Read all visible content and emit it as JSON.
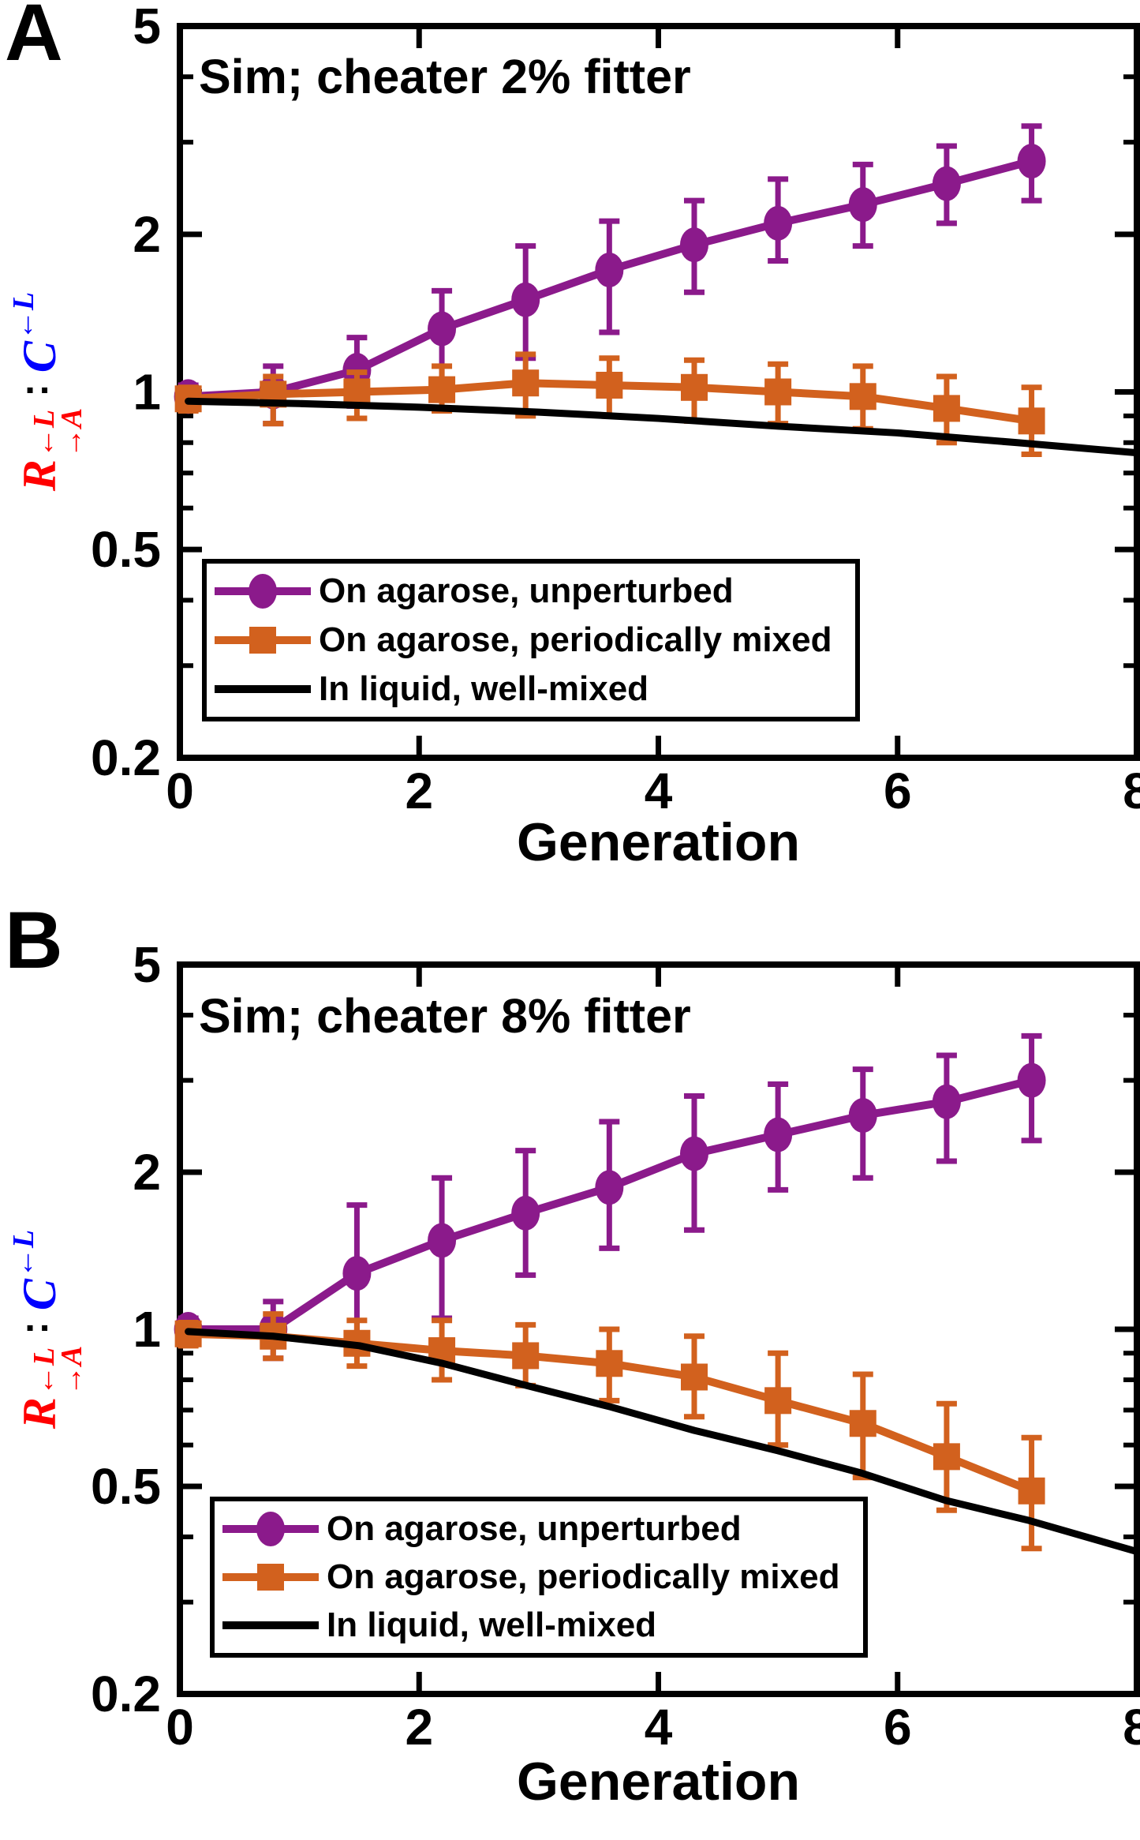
{
  "colors": {
    "purple": "#8B1A8B",
    "orange": "#D2611E",
    "black": "#000000",
    "red": "#FF0000",
    "blue": "#0000FF"
  },
  "panels": [
    {
      "letter": "A",
      "title": "Sim; cheater 2% fitter"
    },
    {
      "letter": "B",
      "title": "Sim; cheater 8% fitter"
    }
  ],
  "xlabel": "Generation",
  "ylabel": {
    "r": "R",
    "r_sup": "←L",
    "r_sub": "→A",
    "colon": ":",
    "c": "C",
    "c_sup": "←L"
  },
  "legend": [
    {
      "label": "On agarose, unperturbed",
      "marker": "ellipse",
      "color": "#8B1A8B"
    },
    {
      "label": "On agarose, periodically mixed",
      "marker": "square",
      "color": "#D2611E"
    },
    {
      "label": "In liquid, well-mixed",
      "marker": "line",
      "color": "#000000"
    }
  ],
  "chart_data": [
    {
      "type": "line",
      "title": "Sim; cheater 2% fitter",
      "xlabel": "Generation",
      "ylabel": "R(A->, <-L) : C(<-L) ratio",
      "yscale": "log",
      "xlim": [
        0,
        8
      ],
      "ylim": [
        0.2,
        5
      ],
      "xticks": [
        {
          "v": 0,
          "label": "0"
        },
        {
          "v": 2,
          "label": "2"
        },
        {
          "v": 4,
          "label": "4"
        },
        {
          "v": 6,
          "label": "6"
        },
        {
          "v": 8,
          "label": "8"
        }
      ],
      "xticks_top": [
        2,
        4,
        6
      ],
      "yticks": [
        {
          "v": 5,
          "label": "5"
        },
        {
          "v": 2,
          "label": "2"
        },
        {
          "v": 1,
          "label": "1"
        },
        {
          "v": 0.5,
          "label": "0.5"
        },
        {
          "v": 0.2,
          "label": "0.2"
        }
      ],
      "yticks_minor": [
        4,
        3,
        0.9,
        0.8,
        0.7,
        0.6,
        0.4,
        0.3
      ],
      "series": [
        {
          "name": "On agarose, unperturbed",
          "marker": "ellipse",
          "color": "#8B1A8B",
          "x": [
            0.07,
            0.78,
            1.48,
            2.19,
            2.89,
            3.59,
            4.3,
            5.0,
            5.71,
            6.41,
            7.12
          ],
          "y": [
            0.98,
            1.0,
            1.1,
            1.32,
            1.5,
            1.71,
            1.91,
            2.1,
            2.28,
            2.5,
            2.76
          ],
          "err_lo": [
            0.93,
            0.87,
            0.94,
            1.05,
            1.16,
            1.3,
            1.55,
            1.78,
            1.9,
            2.1,
            2.32
          ],
          "err_hi": [
            1.03,
            1.12,
            1.27,
            1.56,
            1.9,
            2.12,
            2.32,
            2.55,
            2.72,
            2.95,
            3.22
          ]
        },
        {
          "name": "On agarose, periodically mixed",
          "marker": "square",
          "color": "#D2611E",
          "x": [
            0.07,
            0.78,
            1.48,
            2.19,
            2.89,
            3.59,
            4.3,
            5.0,
            5.71,
            6.41,
            7.12
          ],
          "y": [
            0.97,
            0.99,
            1.0,
            1.01,
            1.04,
            1.03,
            1.02,
            1.0,
            0.98,
            0.93,
            0.88
          ],
          "err_lo": [
            0.92,
            0.87,
            0.89,
            0.92,
            0.9,
            0.9,
            0.88,
            0.87,
            0.85,
            0.8,
            0.76
          ],
          "err_hi": [
            1.02,
            1.07,
            1.09,
            1.12,
            1.18,
            1.16,
            1.15,
            1.13,
            1.12,
            1.07,
            1.02
          ]
        },
        {
          "name": "In liquid, well-mixed",
          "marker": "none",
          "color": "#000000",
          "x": [
            0.07,
            1,
            2,
            3,
            4,
            5,
            6,
            7,
            8
          ],
          "y": [
            0.96,
            0.95,
            0.935,
            0.915,
            0.89,
            0.86,
            0.835,
            0.8,
            0.765
          ]
        }
      ]
    },
    {
      "type": "line",
      "title": "Sim; cheater 8% fitter",
      "xlabel": "Generation",
      "ylabel": "R(A->, <-L) : C(<-L) ratio",
      "yscale": "log",
      "xlim": [
        0,
        8
      ],
      "ylim": [
        0.2,
        5
      ],
      "xticks": [
        {
          "v": 0,
          "label": "0"
        },
        {
          "v": 2,
          "label": "2"
        },
        {
          "v": 4,
          "label": "4"
        },
        {
          "v": 6,
          "label": "6"
        },
        {
          "v": 8,
          "label": "8"
        }
      ],
      "xticks_top": [
        2,
        4,
        6
      ],
      "yticks": [
        {
          "v": 5,
          "label": "5"
        },
        {
          "v": 2,
          "label": "2"
        },
        {
          "v": 1,
          "label": "1"
        },
        {
          "v": 0.5,
          "label": "0.5"
        },
        {
          "v": 0.2,
          "label": "0.2"
        }
      ],
      "yticks_minor": [
        4,
        3,
        0.9,
        0.8,
        0.7,
        0.6,
        0.4,
        0.3
      ],
      "series": [
        {
          "name": "On agarose, unperturbed",
          "marker": "ellipse",
          "color": "#8B1A8B",
          "x": [
            0.07,
            0.78,
            1.48,
            2.19,
            2.89,
            3.59,
            4.3,
            5.0,
            5.71,
            6.41,
            7.12
          ],
          "y": [
            1.0,
            1.0,
            1.28,
            1.48,
            1.67,
            1.87,
            2.17,
            2.36,
            2.57,
            2.73,
            3.0
          ],
          "err_lo": [
            0.95,
            0.88,
            0.92,
            1.05,
            1.27,
            1.43,
            1.55,
            1.85,
            1.95,
            2.1,
            2.3
          ],
          "err_hi": [
            1.05,
            1.13,
            1.73,
            1.95,
            2.2,
            2.5,
            2.8,
            2.95,
            3.15,
            3.35,
            3.65
          ]
        },
        {
          "name": "On agarose, periodically mixed",
          "marker": "square",
          "color": "#D2611E",
          "x": [
            0.07,
            0.78,
            1.48,
            2.19,
            2.89,
            3.59,
            4.3,
            5.0,
            5.71,
            6.41,
            7.12
          ],
          "y": [
            0.98,
            0.97,
            0.94,
            0.91,
            0.89,
            0.86,
            0.81,
            0.73,
            0.66,
            0.57,
            0.49
          ],
          "err_lo": [
            0.93,
            0.88,
            0.85,
            0.8,
            0.78,
            0.73,
            0.68,
            0.6,
            0.52,
            0.45,
            0.38
          ],
          "err_hi": [
            1.03,
            1.07,
            1.04,
            1.04,
            1.02,
            1.0,
            0.97,
            0.9,
            0.82,
            0.72,
            0.62
          ]
        },
        {
          "name": "In liquid, well-mixed",
          "marker": "none",
          "color": "#000000",
          "x": [
            0.07,
            0.78,
            1.5,
            2.2,
            2.9,
            3.6,
            4.3,
            5.0,
            5.7,
            6.4,
            7.1,
            8
          ],
          "y": [
            0.99,
            0.97,
            0.93,
            0.86,
            0.78,
            0.71,
            0.64,
            0.585,
            0.53,
            0.47,
            0.43,
            0.375
          ]
        }
      ]
    }
  ]
}
